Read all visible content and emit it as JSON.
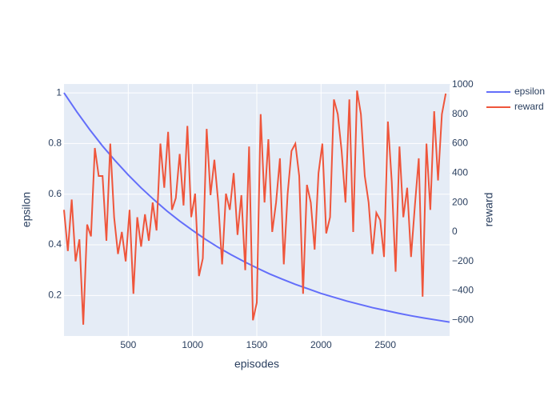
{
  "chart_data": {
    "type": "line",
    "x_label": "episodes",
    "y_label": "epsilon",
    "y2_label": "reward",
    "xlim": [
      0,
      3000
    ],
    "xticks": [
      500,
      1000,
      1500,
      2000,
      2500
    ],
    "ylim": [
      0.04,
      1.035
    ],
    "yticks": [
      0.2,
      0.4,
      0.6,
      0.8,
      1
    ],
    "y2lim": [
      -707,
      1005
    ],
    "y2ticks": [
      {
        "value": -600,
        "label": "−600"
      },
      {
        "value": -400,
        "label": "−400"
      },
      {
        "value": -200,
        "label": "−200"
      },
      0,
      200,
      400,
      600,
      800,
      1000
    ],
    "grid": true,
    "legend": "right",
    "series": [
      {
        "name": "epsilon",
        "color": "#636efa",
        "x": [
          0,
          100,
          200,
          300,
          400,
          500,
          600,
          700,
          800,
          900,
          1000,
          1100,
          1200,
          1300,
          1400,
          1500,
          1600,
          1700,
          1800,
          1900,
          2000,
          2100,
          2200,
          2300,
          2400,
          2500,
          2600,
          2700,
          2800,
          2900,
          3000
        ],
        "values": [
          1,
          0.925,
          0.855,
          0.79,
          0.731,
          0.676,
          0.625,
          0.578,
          0.534,
          0.494,
          0.457,
          0.422,
          0.39,
          0.361,
          0.334,
          0.309,
          0.285,
          0.264,
          0.244,
          0.226,
          0.208,
          0.193,
          0.178,
          0.165,
          0.152,
          0.141,
          0.13,
          0.12,
          0.111,
          0.103,
          0.095
        ]
      },
      {
        "name": "reward",
        "color": "#ef553b",
        "axis": "y2",
        "x": [
          0,
          30,
          60,
          90,
          120,
          150,
          180,
          210,
          240,
          270,
          300,
          330,
          360,
          390,
          420,
          450,
          480,
          510,
          540,
          570,
          600,
          630,
          660,
          690,
          720,
          750,
          780,
          810,
          840,
          870,
          900,
          930,
          960,
          990,
          1020,
          1050,
          1080,
          1110,
          1140,
          1170,
          1200,
          1230,
          1260,
          1290,
          1320,
          1350,
          1380,
          1410,
          1440,
          1470,
          1500,
          1530,
          1560,
          1590,
          1620,
          1650,
          1680,
          1710,
          1740,
          1770,
          1800,
          1830,
          1860,
          1890,
          1920,
          1950,
          1980,
          2010,
          2040,
          2070,
          2100,
          2130,
          2160,
          2190,
          2220,
          2250,
          2280,
          2310,
          2340,
          2370,
          2400,
          2430,
          2460,
          2490,
          2520,
          2550,
          2580,
          2610,
          2640,
          2670,
          2700,
          2730,
          2760,
          2790,
          2820,
          2850,
          2880,
          2910,
          2940,
          2970
        ],
        "values": [
          150,
          -130,
          220,
          -200,
          -50,
          -630,
          50,
          -30,
          570,
          380,
          380,
          -60,
          600,
          100,
          -150,
          0,
          -200,
          150,
          -420,
          100,
          -100,
          120,
          -60,
          200,
          10,
          600,
          300,
          680,
          150,
          230,
          530,
          180,
          720,
          100,
          260,
          -300,
          -180,
          700,
          250,
          490,
          200,
          -220,
          260,
          150,
          400,
          -20,
          250,
          -260,
          580,
          -600,
          -480,
          800,
          200,
          630,
          0,
          200,
          500,
          -220,
          260,
          550,
          600,
          380,
          -420,
          320,
          200,
          -120,
          400,
          600,
          -10,
          100,
          900,
          800,
          550,
          200,
          900,
          0,
          960,
          800,
          380,
          200,
          -150,
          130,
          80,
          -170,
          750,
          340,
          -270,
          580,
          100,
          300,
          -170,
          180,
          500,
          -440,
          600,
          150,
          820,
          350,
          800,
          940
        ]
      }
    ]
  }
}
